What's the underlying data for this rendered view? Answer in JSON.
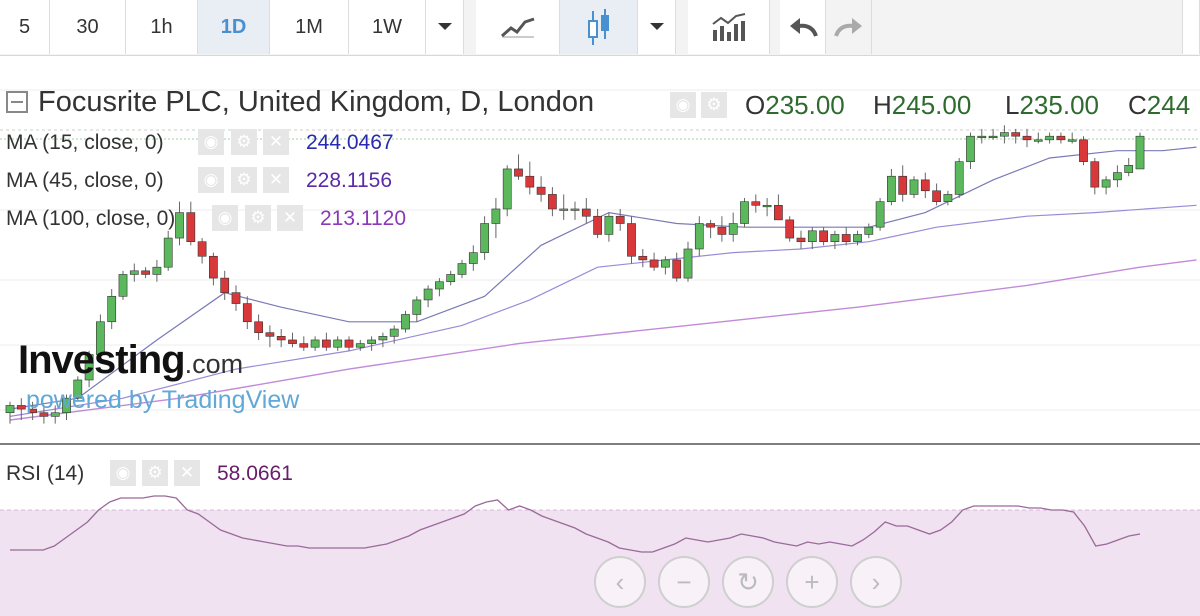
{
  "toolbar": {
    "intervals": [
      "5",
      "30",
      "1h",
      "1D",
      "1M",
      "1W"
    ],
    "active_interval": "1D",
    "icons": [
      "dropdown-caret-icon",
      "line-chart-icon",
      "candlestick-icon",
      "dropdown-caret-icon",
      "indicators-icon",
      "undo-icon",
      "redo-icon"
    ]
  },
  "legend": {
    "title": "Focusrite PLC, United Kingdom, D, London",
    "ohlc": {
      "o_label": "O",
      "o_value": "235.00",
      "h_label": "H",
      "h_value": "245.00",
      "l_label": "L",
      "l_value": "235.00",
      "c_label": "C",
      "c_value": "244"
    }
  },
  "indicators": {
    "ma15": {
      "label": "MA (15, close, 0)",
      "value": "244.0467",
      "color": "#2a2ab0"
    },
    "ma45": {
      "label": "MA (45, close, 0)",
      "value": "228.1156",
      "color": "#5a2aa8"
    },
    "ma100": {
      "label": "MA (100, close, 0)",
      "value": "213.1120",
      "color": "#8a3ab8"
    },
    "rsi": {
      "label": "RSI (14)",
      "value": "58.0661",
      "color": "#6a1b6a"
    }
  },
  "watermark": {
    "brand": "Investing",
    "brand_suffix": ".com",
    "powered": "powered by TradingView"
  },
  "nav_icons": [
    "scroll-left-icon",
    "zoom-out-icon",
    "reset-icon",
    "zoom-in-icon",
    "scroll-right-icon"
  ],
  "colors": {
    "up": "#5cb85c",
    "down": "#d9383a",
    "wick": "#666666",
    "rsi_band": "#f0e2f0",
    "rsi_line": "#9a6a9a"
  },
  "chart_data": {
    "type": "candlestick",
    "title": "Focusrite PLC, United Kingdom, D, London",
    "y_range": [
      166,
      249
    ],
    "candles": [
      {
        "o": 168,
        "h": 171,
        "l": 165,
        "c": 170
      },
      {
        "o": 170,
        "h": 172,
        "l": 166,
        "c": 169
      },
      {
        "o": 169,
        "h": 171,
        "l": 166,
        "c": 168
      },
      {
        "o": 168,
        "h": 170,
        "l": 165,
        "c": 167
      },
      {
        "o": 167,
        "h": 170,
        "l": 165,
        "c": 168
      },
      {
        "o": 168,
        "h": 173,
        "l": 166,
        "c": 172
      },
      {
        "o": 172,
        "h": 178,
        "l": 171,
        "c": 177
      },
      {
        "o": 177,
        "h": 185,
        "l": 175,
        "c": 184
      },
      {
        "o": 184,
        "h": 195,
        "l": 182,
        "c": 193
      },
      {
        "o": 193,
        "h": 202,
        "l": 191,
        "c": 200
      },
      {
        "o": 200,
        "h": 207,
        "l": 199,
        "c": 206
      },
      {
        "o": 206,
        "h": 209,
        "l": 204,
        "c": 207
      },
      {
        "o": 207,
        "h": 208,
        "l": 205,
        "c": 206
      },
      {
        "o": 206,
        "h": 210,
        "l": 204,
        "c": 208
      },
      {
        "o": 208,
        "h": 218,
        "l": 207,
        "c": 216
      },
      {
        "o": 216,
        "h": 226,
        "l": 214,
        "c": 223
      },
      {
        "o": 223,
        "h": 226,
        "l": 214,
        "c": 215
      },
      {
        "o": 215,
        "h": 216,
        "l": 209,
        "c": 211
      },
      {
        "o": 211,
        "h": 212,
        "l": 203,
        "c": 205
      },
      {
        "o": 205,
        "h": 207,
        "l": 199,
        "c": 201
      },
      {
        "o": 201,
        "h": 203,
        "l": 196,
        "c": 198
      },
      {
        "o": 198,
        "h": 200,
        "l": 191,
        "c": 193
      },
      {
        "o": 193,
        "h": 195,
        "l": 188,
        "c": 190
      },
      {
        "o": 190,
        "h": 192,
        "l": 186,
        "c": 189
      },
      {
        "o": 189,
        "h": 191,
        "l": 186,
        "c": 188
      },
      {
        "o": 188,
        "h": 190,
        "l": 186,
        "c": 187
      },
      {
        "o": 187,
        "h": 189,
        "l": 185,
        "c": 186
      },
      {
        "o": 186,
        "h": 189,
        "l": 185,
        "c": 188
      },
      {
        "o": 188,
        "h": 190,
        "l": 185,
        "c": 186
      },
      {
        "o": 186,
        "h": 189,
        "l": 185,
        "c": 188
      },
      {
        "o": 188,
        "h": 189,
        "l": 185,
        "c": 186
      },
      {
        "o": 186,
        "h": 188,
        "l": 185,
        "c": 187
      },
      {
        "o": 187,
        "h": 189,
        "l": 185,
        "c": 188
      },
      {
        "o": 188,
        "h": 190,
        "l": 186,
        "c": 189
      },
      {
        "o": 189,
        "h": 192,
        "l": 187,
        "c": 191
      },
      {
        "o": 191,
        "h": 196,
        "l": 190,
        "c": 195
      },
      {
        "o": 195,
        "h": 200,
        "l": 193,
        "c": 199
      },
      {
        "o": 199,
        "h": 203,
        "l": 197,
        "c": 202
      },
      {
        "o": 202,
        "h": 205,
        "l": 200,
        "c": 204
      },
      {
        "o": 204,
        "h": 207,
        "l": 203,
        "c": 206
      },
      {
        "o": 206,
        "h": 210,
        "l": 205,
        "c": 209
      },
      {
        "o": 209,
        "h": 214,
        "l": 207,
        "c": 212
      },
      {
        "o": 212,
        "h": 222,
        "l": 210,
        "c": 220
      },
      {
        "o": 220,
        "h": 227,
        "l": 216,
        "c": 224
      },
      {
        "o": 224,
        "h": 236,
        "l": 222,
        "c": 235
      },
      {
        "o": 235,
        "h": 239,
        "l": 232,
        "c": 233
      },
      {
        "o": 233,
        "h": 237,
        "l": 228,
        "c": 230
      },
      {
        "o": 230,
        "h": 233,
        "l": 226,
        "c": 228
      },
      {
        "o": 228,
        "h": 230,
        "l": 222,
        "c": 224
      },
      {
        "o": 224,
        "h": 228,
        "l": 221,
        "c": 224
      },
      {
        "o": 224,
        "h": 226,
        "l": 221,
        "c": 224
      },
      {
        "o": 224,
        "h": 227,
        "l": 220,
        "c": 222
      },
      {
        "o": 222,
        "h": 224,
        "l": 216,
        "c": 217
      },
      {
        "o": 217,
        "h": 223,
        "l": 215,
        "c": 222
      },
      {
        "o": 222,
        "h": 224,
        "l": 218,
        "c": 220
      },
      {
        "o": 220,
        "h": 222,
        "l": 209,
        "c": 211
      },
      {
        "o": 211,
        "h": 213,
        "l": 208,
        "c": 210
      },
      {
        "o": 210,
        "h": 212,
        "l": 207,
        "c": 208
      },
      {
        "o": 208,
        "h": 211,
        "l": 206,
        "c": 210
      },
      {
        "o": 210,
        "h": 212,
        "l": 204,
        "c": 205
      },
      {
        "o": 205,
        "h": 215,
        "l": 204,
        "c": 213
      },
      {
        "o": 213,
        "h": 222,
        "l": 211,
        "c": 220
      },
      {
        "o": 220,
        "h": 221,
        "l": 216,
        "c": 219
      },
      {
        "o": 219,
        "h": 222,
        "l": 215,
        "c": 217
      },
      {
        "o": 217,
        "h": 223,
        "l": 215,
        "c": 220
      },
      {
        "o": 220,
        "h": 227,
        "l": 219,
        "c": 226
      },
      {
        "o": 226,
        "h": 228,
        "l": 223,
        "c": 225
      },
      {
        "o": 225,
        "h": 227,
        "l": 222,
        "c": 225
      },
      {
        "o": 225,
        "h": 228,
        "l": 221,
        "c": 221
      },
      {
        "o": 221,
        "h": 222,
        "l": 215,
        "c": 216
      },
      {
        "o": 216,
        "h": 218,
        "l": 213,
        "c": 215
      },
      {
        "o": 215,
        "h": 219,
        "l": 213,
        "c": 218
      },
      {
        "o": 218,
        "h": 219,
        "l": 214,
        "c": 215
      },
      {
        "o": 215,
        "h": 218,
        "l": 213,
        "c": 217
      },
      {
        "o": 217,
        "h": 219,
        "l": 214,
        "c": 215
      },
      {
        "o": 215,
        "h": 218,
        "l": 214,
        "c": 217
      },
      {
        "o": 217,
        "h": 220,
        "l": 216,
        "c": 219
      },
      {
        "o": 219,
        "h": 227,
        "l": 218,
        "c": 226
      },
      {
        "o": 226,
        "h": 235,
        "l": 225,
        "c": 233
      },
      {
        "o": 233,
        "h": 236,
        "l": 226,
        "c": 228
      },
      {
        "o": 228,
        "h": 233,
        "l": 227,
        "c": 232
      },
      {
        "o": 232,
        "h": 234,
        "l": 227,
        "c": 229
      },
      {
        "o": 229,
        "h": 231,
        "l": 225,
        "c": 226
      },
      {
        "o": 226,
        "h": 229,
        "l": 225,
        "c": 228
      },
      {
        "o": 228,
        "h": 238,
        "l": 227,
        "c": 237
      },
      {
        "o": 237,
        "h": 245,
        "l": 235,
        "c": 244
      },
      {
        "o": 244,
        "h": 246,
        "l": 242,
        "c": 244
      },
      {
        "o": 244,
        "h": 246,
        "l": 243,
        "c": 244
      },
      {
        "o": 244,
        "h": 247,
        "l": 242,
        "c": 245
      },
      {
        "o": 245,
        "h": 246,
        "l": 242,
        "c": 244
      },
      {
        "o": 244,
        "h": 246,
        "l": 241,
        "c": 243
      },
      {
        "o": 243,
        "h": 245,
        "l": 242,
        "c": 243
      },
      {
        "o": 243,
        "h": 245,
        "l": 242,
        "c": 244
      },
      {
        "o": 244,
        "h": 245,
        "l": 242,
        "c": 243
      },
      {
        "o": 243,
        "h": 245,
        "l": 242,
        "c": 243
      },
      {
        "o": 243,
        "h": 244,
        "l": 236,
        "c": 237
      },
      {
        "o": 237,
        "h": 238,
        "l": 228,
        "c": 230
      },
      {
        "o": 230,
        "h": 233,
        "l": 228,
        "c": 232
      },
      {
        "o": 232,
        "h": 236,
        "l": 230,
        "c": 234
      },
      {
        "o": 234,
        "h": 238,
        "l": 233,
        "c": 236
      },
      {
        "o": 235,
        "h": 245,
        "l": 235,
        "c": 244
      }
    ],
    "ma15": [
      [
        0,
        169
      ],
      [
        6,
        172
      ],
      [
        13,
        188
      ],
      [
        19,
        201
      ],
      [
        24,
        197
      ],
      [
        30,
        193
      ],
      [
        36,
        193
      ],
      [
        42,
        200
      ],
      [
        47,
        214
      ],
      [
        53,
        223
      ],
      [
        59,
        220
      ],
      [
        65,
        219
      ],
      [
        70,
        219
      ],
      [
        76,
        219
      ],
      [
        81,
        223
      ],
      [
        87,
        232
      ],
      [
        92,
        238
      ],
      [
        98,
        240
      ],
      [
        102,
        240
      ],
      [
        105,
        241
      ]
    ],
    "ma45": [
      [
        0,
        167
      ],
      [
        10,
        172
      ],
      [
        20,
        180
      ],
      [
        30,
        185
      ],
      [
        40,
        192
      ],
      [
        46,
        199
      ],
      [
        52,
        208
      ],
      [
        58,
        210
      ],
      [
        64,
        212
      ],
      [
        70,
        213
      ],
      [
        76,
        215
      ],
      [
        82,
        219
      ],
      [
        90,
        222
      ],
      [
        96,
        223
      ],
      [
        105,
        225
      ]
    ],
    "ma100": [
      [
        0,
        166
      ],
      [
        15,
        172
      ],
      [
        30,
        180
      ],
      [
        45,
        187
      ],
      [
        60,
        192
      ],
      [
        75,
        197
      ],
      [
        90,
        203
      ],
      [
        100,
        208
      ],
      [
        105,
        210
      ]
    ],
    "rsi": [
      50,
      50,
      50,
      50,
      52,
      56,
      60,
      64,
      70,
      74,
      76,
      76,
      76,
      77,
      77,
      76,
      70,
      68,
      64,
      60,
      58,
      56,
      55,
      54,
      53,
      52,
      52,
      51,
      51,
      51,
      51,
      51,
      51,
      52,
      53,
      55,
      57,
      60,
      62,
      64,
      66,
      68,
      72,
      74,
      75,
      70,
      72,
      70,
      67,
      65,
      63,
      61,
      58,
      56,
      54,
      51,
      50,
      49,
      49,
      51,
      53,
      56,
      55,
      54,
      55,
      56,
      58,
      57,
      56,
      54,
      53,
      52,
      54,
      53,
      54,
      53,
      52,
      55,
      59,
      64,
      62,
      62,
      60,
      58,
      60,
      64,
      70,
      72,
      72,
      72,
      72,
      72,
      71,
      71,
      70,
      70,
      69,
      62,
      52,
      53,
      55,
      57,
      58
    ]
  }
}
